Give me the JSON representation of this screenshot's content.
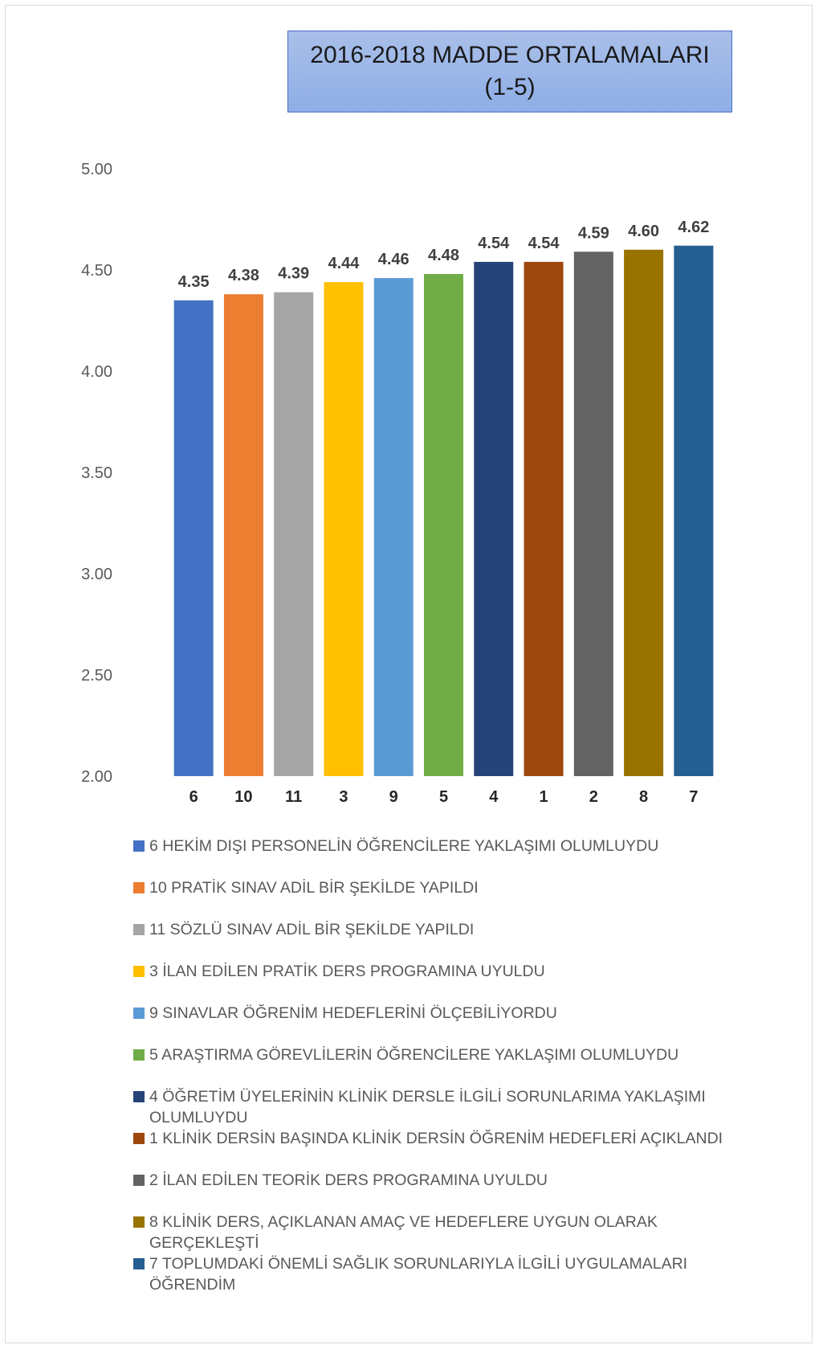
{
  "chart_data": {
    "type": "bar",
    "title_line1": "2016-2018 MADDE ORTALAMALARI",
    "title_line2": "(1-5)",
    "categories": [
      "6",
      "10",
      "11",
      "3",
      "9",
      "5",
      "4",
      "1",
      "2",
      "8",
      "7"
    ],
    "values": [
      4.35,
      4.38,
      4.39,
      4.44,
      4.46,
      4.48,
      4.54,
      4.54,
      4.59,
      4.6,
      4.62
    ],
    "colors": [
      "#4472c4",
      "#ed7d31",
      "#a5a5a5",
      "#ffc000",
      "#5b9bd5",
      "#70ad47",
      "#264478",
      "#9e480e",
      "#636363",
      "#997300",
      "#255e91"
    ],
    "ylim": [
      2.0,
      5.0
    ],
    "yticks": [
      "2.00",
      "2.50",
      "3.00",
      "3.50",
      "4.00",
      "4.50",
      "5.00"
    ],
    "grid": false,
    "legend_position": "bottom",
    "legend": [
      "6 HEKİM DIŞI PERSONELİN ÖĞRENCİLERE YAKLAŞIMI OLUMLUYDU",
      "10 PRATİK SINAV ADİL BİR ŞEKİLDE YAPILDI",
      "11 SÖZLÜ SINAV ADİL BİR ŞEKİLDE YAPILDI",
      "3 İLAN EDİLEN PRATİK DERS PROGRAMINA UYULDU",
      "9 SINAVLAR ÖĞRENİM HEDEFLERİNİ ÖLÇEBİLİYORDU",
      "5 ARAŞTIRMA GÖREVLİLERİN ÖĞRENCİLERE YAKLAŞIMI OLUMLUYDU",
      "4 ÖĞRETİM ÜYELERİNİN KLİNİK DERSLE İLGİLİ SORUNLARIMA YAKLAŞIMI OLUMLUYDU",
      "1 KLİNİK DERSİN BAŞINDA KLİNİK DERSİN ÖĞRENİM HEDEFLERİ AÇIKLANDI",
      "2 İLAN EDİLEN TEORİK DERS PROGRAMINA UYULDU",
      "8 KLİNİK DERS, AÇIKLANAN AMAÇ VE HEDEFLERE UYGUN OLARAK GERÇEKLEŞTİ",
      "7 TOPLUMDAKİ ÖNEMLİ SAĞLIK SORUNLARIYLA İLGİLİ UYGULAMALARI ÖĞRENDİM"
    ]
  }
}
